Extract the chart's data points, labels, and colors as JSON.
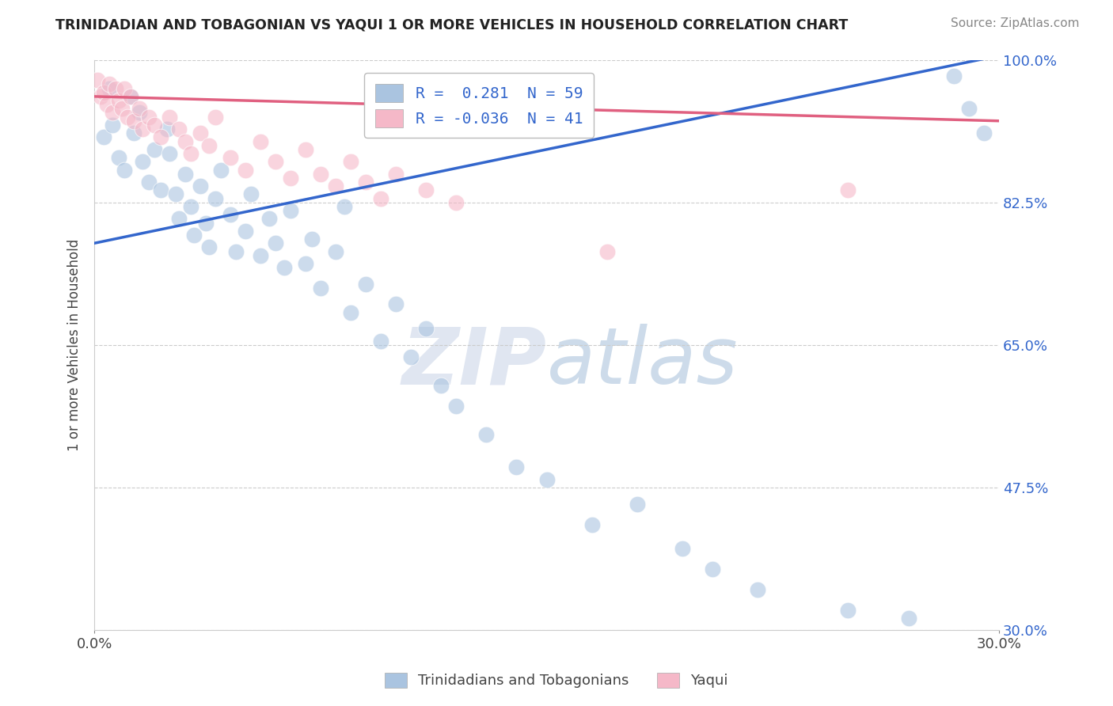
{
  "title": "TRINIDADIAN AND TOBAGONIAN VS YAQUI 1 OR MORE VEHICLES IN HOUSEHOLD CORRELATION CHART",
  "source": "Source: ZipAtlas.com",
  "ylabel": "1 or more Vehicles in Household",
  "xmin": 0.0,
  "xmax": 30.0,
  "ymin": 30.0,
  "ymax": 100.0,
  "yticks": [
    30.0,
    47.5,
    65.0,
    82.5,
    100.0
  ],
  "r_blue": 0.281,
  "n_blue": 59,
  "r_pink": -0.036,
  "n_pink": 41,
  "blue_color": "#aac4e0",
  "pink_color": "#f5b8c8",
  "blue_line_color": "#3366cc",
  "pink_line_color": "#e06080",
  "legend_blue_label": "Trinidadians and Tobagonians",
  "legend_pink_label": "Yaqui",
  "watermark_zip": "ZIP",
  "watermark_atlas": "atlas",
  "blue_trend_x": [
    0.0,
    30.0
  ],
  "blue_trend_y": [
    77.5,
    100.5
  ],
  "pink_trend_x": [
    0.0,
    30.0
  ],
  "pink_trend_y": [
    95.5,
    92.5
  ],
  "blue_x": [
    0.3,
    0.5,
    0.6,
    0.8,
    1.0,
    1.2,
    1.3,
    1.5,
    1.6,
    1.8,
    2.0,
    2.2,
    2.4,
    2.5,
    2.7,
    2.8,
    3.0,
    3.2,
    3.3,
    3.5,
    3.7,
    3.8,
    4.0,
    4.2,
    4.5,
    4.7,
    5.0,
    5.2,
    5.5,
    5.8,
    6.0,
    6.3,
    6.5,
    7.0,
    7.2,
    7.5,
    8.0,
    8.3,
    8.5,
    9.0,
    9.5,
    10.0,
    10.5,
    11.0,
    11.5,
    12.0,
    13.0,
    14.0,
    15.0,
    16.5,
    18.0,
    19.5,
    20.5,
    22.0,
    25.0,
    27.0,
    28.5,
    29.0,
    29.5
  ],
  "blue_y": [
    90.5,
    96.5,
    92.0,
    88.0,
    86.5,
    95.5,
    91.0,
    93.5,
    87.5,
    85.0,
    89.0,
    84.0,
    91.5,
    88.5,
    83.5,
    80.5,
    86.0,
    82.0,
    78.5,
    84.5,
    80.0,
    77.0,
    83.0,
    86.5,
    81.0,
    76.5,
    79.0,
    83.5,
    76.0,
    80.5,
    77.5,
    74.5,
    81.5,
    75.0,
    78.0,
    72.0,
    76.5,
    82.0,
    69.0,
    72.5,
    65.5,
    70.0,
    63.5,
    67.0,
    60.0,
    57.5,
    54.0,
    50.0,
    48.5,
    43.0,
    45.5,
    40.0,
    37.5,
    35.0,
    32.5,
    31.5,
    98.0,
    94.0,
    91.0
  ],
  "pink_x": [
    0.1,
    0.2,
    0.3,
    0.4,
    0.5,
    0.6,
    0.7,
    0.8,
    0.9,
    1.0,
    1.1,
    1.2,
    1.3,
    1.5,
    1.6,
    1.8,
    2.0,
    2.2,
    2.5,
    2.8,
    3.0,
    3.2,
    3.5,
    3.8,
    4.0,
    4.5,
    5.0,
    5.5,
    6.0,
    6.5,
    7.0,
    7.5,
    8.0,
    8.5,
    9.0,
    9.5,
    10.0,
    11.0,
    12.0,
    17.0,
    25.0
  ],
  "pink_y": [
    97.5,
    95.5,
    96.0,
    94.5,
    97.0,
    93.5,
    96.5,
    95.0,
    94.0,
    96.5,
    93.0,
    95.5,
    92.5,
    94.0,
    91.5,
    93.0,
    92.0,
    90.5,
    93.0,
    91.5,
    90.0,
    88.5,
    91.0,
    89.5,
    93.0,
    88.0,
    86.5,
    90.0,
    87.5,
    85.5,
    89.0,
    86.0,
    84.5,
    87.5,
    85.0,
    83.0,
    86.0,
    84.0,
    82.5,
    76.5,
    84.0
  ]
}
